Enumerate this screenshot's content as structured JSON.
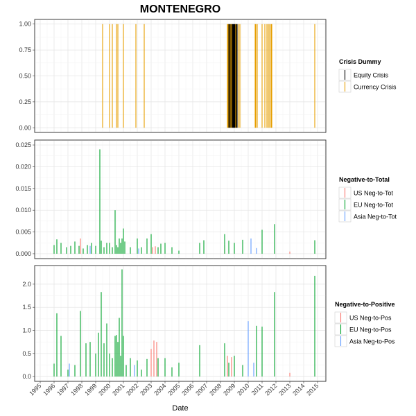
{
  "title": "MONTENEGRO",
  "xlabel": "Date",
  "x_ticks": [
    "1995",
    "1996",
    "1997",
    "1998",
    "1999",
    "2000",
    "2001",
    "2002",
    "2003",
    "2004",
    "2005",
    "2006",
    "2007",
    "2008",
    "2009",
    "2010",
    "2011",
    "2012",
    "2013",
    "2014",
    "2015"
  ],
  "chart_data": [
    {
      "type": "bar",
      "panel": "crisis",
      "legend_title": "Crisis Dummy",
      "ylim": [
        0,
        1
      ],
      "y_ticks": [
        "1.00",
        "0.75",
        "0.50",
        "0.25",
        "0.00"
      ],
      "y_tick_values": [
        1.0,
        0.75,
        0.5,
        0.25,
        0.0
      ],
      "grid": true,
      "legend_position": "right",
      "series": [
        {
          "name": "Equity Crisis",
          "color": "#000000",
          "x": [
            2008.6,
            2008.65,
            2008.75,
            2008.85,
            2008.9,
            2008.95,
            2009.0,
            2009.05,
            2009.15,
            2009.2
          ],
          "values": [
            1,
            1,
            1,
            1,
            1,
            1,
            1,
            1,
            1,
            1
          ]
        },
        {
          "name": "Currency Crisis",
          "color": "#E69F00",
          "x": [
            1999.5,
            2000.0,
            2000.2,
            2000.5,
            2000.6,
            2001.0,
            2001.9,
            2002.5,
            2008.5,
            2008.55,
            2008.7,
            2008.8,
            2009.1,
            2009.3,
            2009.4,
            2010.5,
            2010.55,
            2010.65,
            2011.0,
            2011.2,
            2011.35,
            2011.45,
            2011.55,
            2011.65,
            2011.7,
            2014.8
          ],
          "values": [
            1,
            1,
            1,
            1,
            1,
            1,
            1,
            1,
            1,
            1,
            1,
            1,
            1,
            1,
            1,
            1,
            1,
            1,
            1,
            1,
            1,
            1,
            1,
            1,
            1,
            1
          ]
        }
      ]
    },
    {
      "type": "bar",
      "panel": "neg_to_total",
      "legend_title": "Negative-to-Total",
      "ylim": [
        0,
        0.025
      ],
      "y_ticks": [
        "0.025",
        "0.020",
        "0.015",
        "0.010",
        "0.005",
        "0.000"
      ],
      "y_tick_values": [
        0.025,
        0.02,
        0.015,
        0.01,
        0.005,
        0.0
      ],
      "grid": true,
      "legend_position": "right",
      "series": [
        {
          "name": "US Neg-to-Tot",
          "color": "#F8766D",
          "x": [
            1997.9,
            2003.1,
            2003.3,
            2008.3,
            2013.0
          ],
          "values": [
            0.0035,
            0.0015,
            0.0017,
            0.002,
            0.0005
          ]
        },
        {
          "name": "EU Neg-to-Tot",
          "color": "#00A32A",
          "x": [
            1996.0,
            1996.2,
            1996.5,
            1996.9,
            1997.2,
            1997.5,
            1997.8,
            1998.1,
            1998.4,
            1998.7,
            1999.0,
            1999.3,
            1999.4,
            1999.6,
            1999.8,
            2000.0,
            2000.2,
            2000.4,
            2000.5,
            2000.6,
            2000.7,
            2000.8,
            2000.9,
            2001.0,
            2001.1,
            2001.5,
            2002.0,
            2002.3,
            2002.7,
            2003.0,
            2003.5,
            2003.7,
            2004.0,
            2004.5,
            2005.0,
            2006.5,
            2006.8,
            2008.3,
            2008.6,
            2009.0,
            2009.6,
            2011.0,
            2011.9,
            2014.8
          ],
          "values": [
            0.002,
            0.0033,
            0.0025,
            0.0015,
            0.0018,
            0.0028,
            0.0018,
            0.0012,
            0.002,
            0.0025,
            0.0018,
            0.024,
            0.003,
            0.0015,
            0.0025,
            0.0025,
            0.0015,
            0.01,
            0.002,
            0.0015,
            0.0035,
            0.0025,
            0.0035,
            0.0058,
            0.0028,
            0.0015,
            0.0035,
            0.0015,
            0.0035,
            0.0045,
            0.0015,
            0.0023,
            0.0025,
            0.0015,
            0.0007,
            0.0025,
            0.0031,
            0.0045,
            0.003,
            0.0025,
            0.0032,
            0.0055,
            0.0068,
            0.0031
          ]
        },
        {
          "name": "Asia Neg-to-Tot",
          "color": "#619CFF",
          "x": [
            1998.6,
            2002.1,
            2010.2,
            2010.6
          ],
          "values": [
            0.0018,
            0.0012,
            0.0035,
            0.0013
          ]
        }
      ]
    },
    {
      "type": "bar",
      "panel": "neg_to_pos",
      "legend_title": "Negative-to-Positive",
      "ylim": [
        0,
        2.3
      ],
      "y_ticks": [
        "2.0",
        "1.5",
        "1.0",
        "0.5",
        "0.0"
      ],
      "y_tick_values": [
        2.0,
        1.5,
        1.0,
        0.5,
        0.0
      ],
      "grid": true,
      "legend_position": "right",
      "series": [
        {
          "name": "US Neg-to-Pos",
          "color": "#F8766D",
          "x": [
            2003.0,
            2003.2,
            2003.4,
            2008.5,
            2008.8,
            2013.0
          ],
          "values": [
            0.6,
            0.78,
            0.75,
            0.45,
            0.42,
            0.08
          ]
        },
        {
          "name": "EU Neg-to-Pos",
          "color": "#00A32A",
          "x": [
            1996.0,
            1996.2,
            1996.5,
            1997.0,
            1997.5,
            1997.9,
            1998.3,
            1998.6,
            1999.0,
            1999.2,
            1999.4,
            1999.6,
            1999.8,
            2000.0,
            2000.2,
            2000.4,
            2000.5,
            2000.6,
            2000.7,
            2000.8,
            2000.9,
            2001.0,
            2001.2,
            2001.5,
            2002.0,
            2002.3,
            2002.7,
            2003.5,
            2004.0,
            2004.5,
            2005.0,
            2006.5,
            2008.3,
            2008.6,
            2009.0,
            2009.6,
            2010.6,
            2011.0,
            2011.9,
            2014.8
          ],
          "values": [
            0.28,
            1.37,
            0.88,
            0.15,
            0.25,
            1.42,
            0.72,
            0.75,
            0.5,
            0.95,
            1.83,
            0.72,
            1.15,
            0.5,
            0.4,
            0.88,
            0.9,
            0.75,
            1.27,
            0.45,
            2.32,
            0.88,
            0.25,
            0.4,
            0.35,
            0.15,
            0.38,
            0.4,
            0.4,
            0.2,
            0.3,
            0.68,
            0.72,
            0.3,
            0.45,
            0.25,
            1.1,
            1.08,
            1.83,
            2.18
          ]
        },
        {
          "name": "Asia Neg-to-Pos",
          "color": "#619CFF",
          "x": [
            1997.1,
            2001.8,
            2010.0,
            2010.4
          ],
          "values": [
            0.28,
            0.25,
            1.2,
            0.3
          ]
        }
      ]
    }
  ]
}
